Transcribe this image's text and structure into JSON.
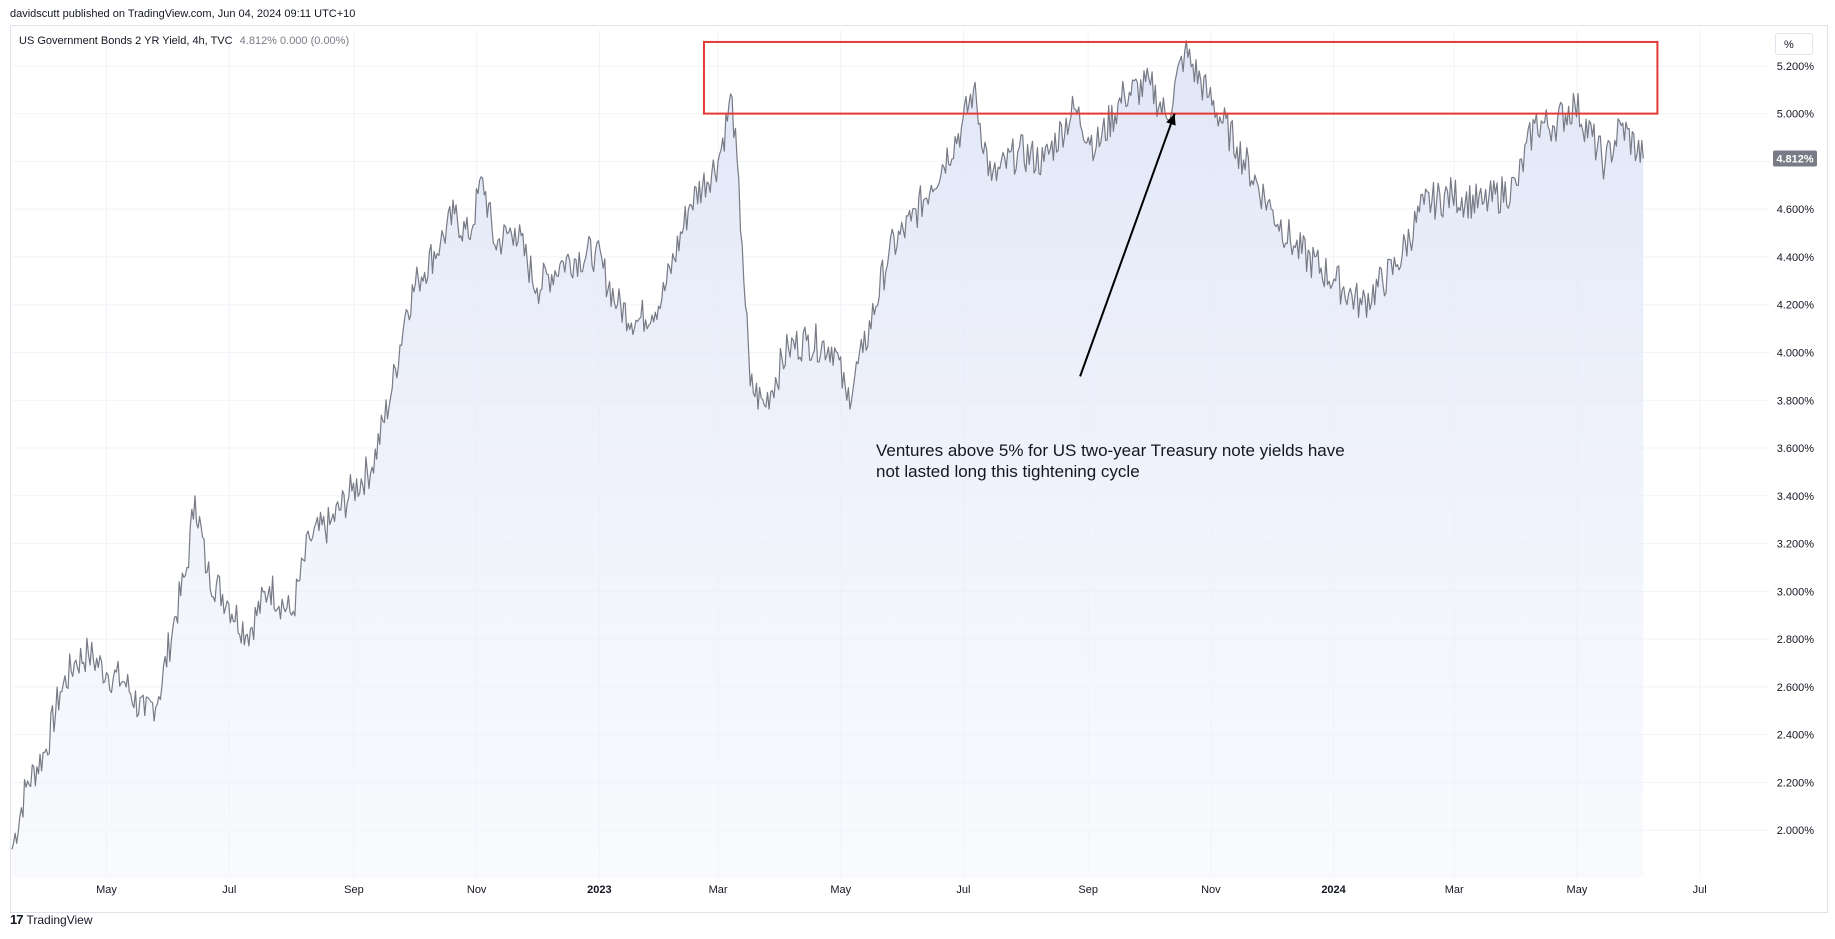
{
  "header": {
    "published": "davidscutt published on TradingView.com, Jun 04, 2024 09:11 UTC+10"
  },
  "legend": {
    "symbol": "US Government Bonds 2 YR Yield, 4h, TVC",
    "values": "4.812%  0.000 (0.00%)"
  },
  "unit_button": "%",
  "annotation": {
    "text": "Ventures above 5% for US two-year Treasury note yields have not lasted long this tightening cycle"
  },
  "footer": {
    "logo": "17",
    "brand": "TradingView"
  },
  "colors": {
    "line": "#787b86",
    "area": "#e3e8f8",
    "highlight_box": "#e53935",
    "arrow": "#000000",
    "last_price_bg": "#787b86"
  },
  "chart_data": {
    "type": "area",
    "title": "US Government Bonds 2 YR Yield, 4h, TVC",
    "ylim": [
      1.8,
      5.35
    ],
    "y_unit": "%",
    "y_ticks": [
      "2.000%",
      "2.200%",
      "2.400%",
      "2.600%",
      "2.800%",
      "3.000%",
      "3.200%",
      "3.400%",
      "3.600%",
      "3.800%",
      "4.000%",
      "4.200%",
      "4.400%",
      "4.600%",
      "4.800%",
      "5.000%",
      "5.200%"
    ],
    "y_tick_values": [
      2.0,
      2.2,
      2.4,
      2.6,
      2.8,
      3.0,
      3.2,
      3.4,
      3.6,
      3.8,
      4.0,
      4.2,
      4.4,
      4.6,
      4.8,
      5.0,
      5.2
    ],
    "x_range": [
      "2022-03-15",
      "2024-07-31"
    ],
    "x_ticks": [
      {
        "label": "May",
        "date": "2022-05-01",
        "major": false
      },
      {
        "label": "Jul",
        "date": "2022-07-01",
        "major": false
      },
      {
        "label": "Sep",
        "date": "2022-09-01",
        "major": false
      },
      {
        "label": "Nov",
        "date": "2022-11-01",
        "major": false
      },
      {
        "label": "2023",
        "date": "2023-01-01",
        "major": true
      },
      {
        "label": "Mar",
        "date": "2023-03-01",
        "major": false
      },
      {
        "label": "May",
        "date": "2023-05-01",
        "major": false
      },
      {
        "label": "Jul",
        "date": "2023-07-01",
        "major": false
      },
      {
        "label": "Sep",
        "date": "2023-09-01",
        "major": false
      },
      {
        "label": "Nov",
        "date": "2023-11-01",
        "major": false
      },
      {
        "label": "2024",
        "date": "2024-01-01",
        "major": true
      },
      {
        "label": "Mar",
        "date": "2024-03-01",
        "major": false
      },
      {
        "label": "May",
        "date": "2024-05-01",
        "major": false
      },
      {
        "label": "Jul",
        "date": "2024-07-01",
        "major": false
      }
    ],
    "last_value_label": "4.812%",
    "last_value": 4.812,
    "series": [
      {
        "x": [
          "2022-03-15",
          "2022-03-22",
          "2022-04-01",
          "2022-04-08",
          "2022-04-15",
          "2022-04-22",
          "2022-05-01",
          "2022-05-10",
          "2022-05-20",
          "2022-05-27",
          "2022-06-03",
          "2022-06-10",
          "2022-06-14",
          "2022-06-20",
          "2022-06-30",
          "2022-07-10",
          "2022-07-21",
          "2022-08-01",
          "2022-08-10",
          "2022-08-20",
          "2022-08-31",
          "2022-09-10",
          "2022-09-20",
          "2022-09-27",
          "2022-10-03",
          "2022-10-14",
          "2022-10-21",
          "2022-10-28",
          "2022-11-04",
          "2022-11-10",
          "2022-11-20",
          "2022-12-01",
          "2022-12-14",
          "2022-12-30",
          "2023-01-10",
          "2023-01-20",
          "2023-02-01",
          "2023-02-15",
          "2023-03-01",
          "2023-03-08",
          "2023-03-13",
          "2023-03-17",
          "2023-03-24",
          "2023-04-05",
          "2023-04-14",
          "2023-04-28",
          "2023-05-04",
          "2023-05-12",
          "2023-05-25",
          "2023-06-05",
          "2023-06-15",
          "2023-06-30",
          "2023-07-06",
          "2023-07-15",
          "2023-07-28",
          "2023-08-10",
          "2023-08-25",
          "2023-09-05",
          "2023-09-19",
          "2023-10-02",
          "2023-10-10",
          "2023-10-19",
          "2023-10-31",
          "2023-11-14",
          "2023-12-01",
          "2023-12-13",
          "2024-01-02",
          "2024-01-15",
          "2024-02-01",
          "2024-02-15",
          "2024-02-29",
          "2024-03-15",
          "2024-04-01",
          "2024-04-10",
          "2024-04-19",
          "2024-04-30",
          "2024-05-15",
          "2024-05-23",
          "2024-06-03"
        ],
        "values": [
          1.92,
          2.18,
          2.34,
          2.58,
          2.7,
          2.74,
          2.66,
          2.62,
          2.48,
          2.56,
          2.85,
          3.1,
          3.4,
          3.08,
          2.96,
          2.82,
          3.02,
          2.9,
          3.22,
          3.28,
          3.42,
          3.52,
          3.85,
          4.18,
          4.31,
          4.46,
          4.58,
          4.48,
          4.73,
          4.45,
          4.52,
          4.27,
          4.38,
          4.42,
          4.2,
          4.13,
          4.22,
          4.62,
          4.8,
          5.07,
          4.45,
          3.86,
          3.78,
          4.02,
          4.05,
          4.02,
          3.8,
          4.0,
          4.42,
          4.55,
          4.7,
          4.94,
          5.1,
          4.72,
          4.84,
          4.8,
          5.02,
          4.86,
          5.08,
          5.12,
          4.98,
          5.26,
          5.07,
          4.86,
          4.6,
          4.44,
          4.3,
          4.2,
          4.36,
          4.62,
          4.66,
          4.62,
          4.7,
          4.96,
          4.95,
          5.04,
          4.79,
          4.95,
          4.812
        ]
      }
    ],
    "highlight_box": {
      "x0": "2023-02-22",
      "x1": "2024-06-10",
      "y0": 5.0,
      "y1": 5.3
    },
    "arrow": {
      "from": {
        "x": "2023-08-28",
        "y": 3.9
      },
      "to": {
        "x": "2023-10-14",
        "y": 5.0
      }
    }
  }
}
